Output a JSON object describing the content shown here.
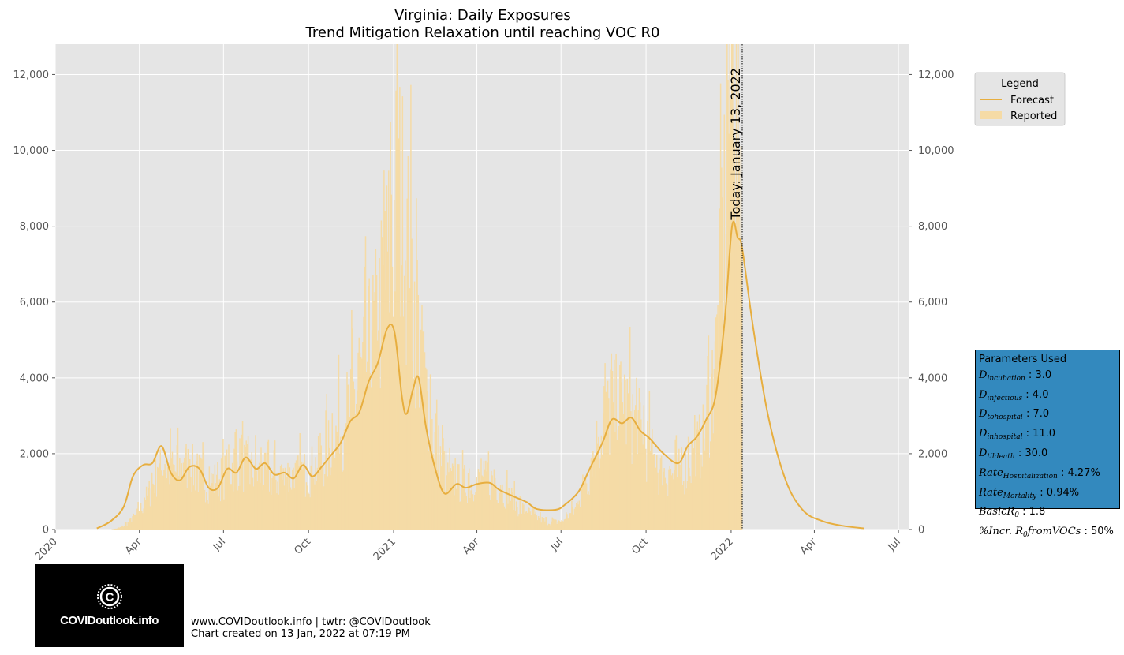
{
  "chart_data": {
    "type": "bar+line",
    "title": "Virginia: Daily Exposures",
    "subtitle": "Trend Mitigation Relaxation until reaching VOC R0",
    "y_ticks": [
      "0",
      "2,000",
      "4,000",
      "6,000",
      "8,000",
      "10,000",
      "12,000"
    ],
    "y_tick_values": [
      0,
      2000,
      4000,
      6000,
      8000,
      10000,
      12000
    ],
    "ylim": [
      0,
      12800
    ],
    "xlim": [
      "2020-01-01",
      "2022-07-12"
    ],
    "x_ticks": [
      {
        "date": "2020-01-01",
        "label": "2020"
      },
      {
        "date": "2020-04-01",
        "label": "Apr"
      },
      {
        "date": "2020-07-01",
        "label": "Jul"
      },
      {
        "date": "2020-10-01",
        "label": "Oct"
      },
      {
        "date": "2021-01-01",
        "label": "2021"
      },
      {
        "date": "2021-04-01",
        "label": "Apr"
      },
      {
        "date": "2021-07-01",
        "label": "Jul"
      },
      {
        "date": "2021-10-01",
        "label": "Oct"
      },
      {
        "date": "2022-01-01",
        "label": "2022"
      },
      {
        "date": "2022-04-01",
        "label": "Apr"
      },
      {
        "date": "2022-07-01",
        "label": "Jul"
      }
    ],
    "today_marker": {
      "date": "2022-01-13",
      "label": "Today: January 13, 2022"
    },
    "legend": {
      "title": "Legend",
      "position": "upper-right-outside",
      "items": [
        "Forecast",
        "Reported"
      ]
    },
    "colors": {
      "forecast": "#e7ae3f",
      "reported": "#f5dba6",
      "plot_bg": "#e5e5e5",
      "grid": "#ffffff",
      "params_bg": "#3389be"
    },
    "grid": true,
    "series": [
      {
        "name": "Reported",
        "kind": "bar",
        "points": [
          [
            "2020-03-01",
            0
          ],
          [
            "2020-03-10",
            40
          ],
          [
            "2020-03-20",
            180
          ],
          [
            "2020-03-31",
            450
          ],
          [
            "2020-04-10",
            900
          ],
          [
            "2020-04-20",
            1500
          ],
          [
            "2020-05-01",
            1600
          ],
          [
            "2020-05-10",
            1500
          ],
          [
            "2020-05-20",
            1700
          ],
          [
            "2020-06-01",
            1500
          ],
          [
            "2020-06-15",
            1200
          ],
          [
            "2020-07-01",
            1400
          ],
          [
            "2020-07-15",
            1800
          ],
          [
            "2020-08-01",
            1500
          ],
          [
            "2020-08-15",
            1400
          ],
          [
            "2020-09-01",
            1300
          ],
          [
            "2020-09-15",
            1400
          ],
          [
            "2020-10-01",
            1500
          ],
          [
            "2020-10-15",
            1800
          ],
          [
            "2020-11-01",
            2500
          ],
          [
            "2020-11-15",
            3200
          ],
          [
            "2020-12-01",
            4300
          ],
          [
            "2020-12-15",
            5500
          ],
          [
            "2020-12-31",
            7800
          ],
          [
            "2021-01-05",
            9000
          ],
          [
            "2021-01-12",
            8000
          ],
          [
            "2021-01-20",
            6500
          ],
          [
            "2021-02-01",
            4000
          ],
          [
            "2021-02-15",
            2200
          ],
          [
            "2021-03-01",
            1300
          ],
          [
            "2021-03-15",
            1200
          ],
          [
            "2021-04-01",
            1250
          ],
          [
            "2021-04-15",
            1300
          ],
          [
            "2021-05-01",
            1000
          ],
          [
            "2021-05-15",
            600
          ],
          [
            "2021-06-01",
            350
          ],
          [
            "2021-06-15",
            200
          ],
          [
            "2021-07-01",
            200
          ],
          [
            "2021-07-15",
            500
          ],
          [
            "2021-08-01",
            1600
          ],
          [
            "2021-08-15",
            2800
          ],
          [
            "2021-09-01",
            3300
          ],
          [
            "2021-09-15",
            3000
          ],
          [
            "2021-10-01",
            2200
          ],
          [
            "2021-10-15",
            1500
          ],
          [
            "2021-11-01",
            1400
          ],
          [
            "2021-11-15",
            1700
          ],
          [
            "2021-12-01",
            2300
          ],
          [
            "2021-12-15",
            4500
          ],
          [
            "2021-12-25",
            8500
          ],
          [
            "2022-01-01",
            12500
          ],
          [
            "2022-01-06",
            11000
          ],
          [
            "2022-01-10",
            9000
          ],
          [
            "2022-01-12",
            7500
          ]
        ]
      },
      {
        "name": "Forecast",
        "kind": "line",
        "points": [
          [
            "2020-02-15",
            30
          ],
          [
            "2020-03-01",
            220
          ],
          [
            "2020-03-15",
            600
          ],
          [
            "2020-03-25",
            1400
          ],
          [
            "2020-04-05",
            1700
          ],
          [
            "2020-04-15",
            1750
          ],
          [
            "2020-04-25",
            2200
          ],
          [
            "2020-05-05",
            1500
          ],
          [
            "2020-05-15",
            1300
          ],
          [
            "2020-05-25",
            1650
          ],
          [
            "2020-06-05",
            1600
          ],
          [
            "2020-06-15",
            1100
          ],
          [
            "2020-06-25",
            1100
          ],
          [
            "2020-07-05",
            1600
          ],
          [
            "2020-07-15",
            1500
          ],
          [
            "2020-07-25",
            1900
          ],
          [
            "2020-08-05",
            1600
          ],
          [
            "2020-08-15",
            1750
          ],
          [
            "2020-08-25",
            1450
          ],
          [
            "2020-09-05",
            1500
          ],
          [
            "2020-09-15",
            1350
          ],
          [
            "2020-09-25",
            1700
          ],
          [
            "2020-10-05",
            1400
          ],
          [
            "2020-10-15",
            1650
          ],
          [
            "2020-10-25",
            1950
          ],
          [
            "2020-11-05",
            2300
          ],
          [
            "2020-11-15",
            2850
          ],
          [
            "2020-11-25",
            3100
          ],
          [
            "2020-12-05",
            3900
          ],
          [
            "2020-12-15",
            4400
          ],
          [
            "2020-12-25",
            5300
          ],
          [
            "2021-01-02",
            5200
          ],
          [
            "2021-01-10",
            3500
          ],
          [
            "2021-01-15",
            3050
          ],
          [
            "2021-01-22",
            3700
          ],
          [
            "2021-01-28",
            4000
          ],
          [
            "2021-02-05",
            2700
          ],
          [
            "2021-02-15",
            1600
          ],
          [
            "2021-02-25",
            950
          ],
          [
            "2021-03-10",
            1200
          ],
          [
            "2021-03-20",
            1100
          ],
          [
            "2021-04-01",
            1200
          ],
          [
            "2021-04-15",
            1230
          ],
          [
            "2021-04-25",
            1050
          ],
          [
            "2021-05-10",
            880
          ],
          [
            "2021-05-25",
            720
          ],
          [
            "2021-06-05",
            540
          ],
          [
            "2021-06-25",
            520
          ],
          [
            "2021-07-05",
            650
          ],
          [
            "2021-07-20",
            1000
          ],
          [
            "2021-08-01",
            1600
          ],
          [
            "2021-08-15",
            2300
          ],
          [
            "2021-08-25",
            2900
          ],
          [
            "2021-09-05",
            2800
          ],
          [
            "2021-09-15",
            2950
          ],
          [
            "2021-09-25",
            2600
          ],
          [
            "2021-10-05",
            2400
          ],
          [
            "2021-10-20",
            2000
          ],
          [
            "2021-11-05",
            1750
          ],
          [
            "2021-11-15",
            2200
          ],
          [
            "2021-11-25",
            2450
          ],
          [
            "2021-12-05",
            2900
          ],
          [
            "2021-12-15",
            3500
          ],
          [
            "2021-12-25",
            5500
          ],
          [
            "2022-01-02",
            8000
          ],
          [
            "2022-01-08",
            7700
          ],
          [
            "2022-01-13",
            7400
          ],
          [
            "2022-01-25",
            5300
          ],
          [
            "2022-02-10",
            3000
          ],
          [
            "2022-03-01",
            1300
          ],
          [
            "2022-03-20",
            500
          ],
          [
            "2022-04-10",
            220
          ],
          [
            "2022-05-01",
            100
          ],
          [
            "2022-05-25",
            30
          ]
        ]
      }
    ]
  },
  "params": {
    "title": "Parameters Used",
    "rows": [
      {
        "var": "D",
        "sub": "incubation",
        "value": "3.0"
      },
      {
        "var": "D",
        "sub": "infectious",
        "value": "4.0"
      },
      {
        "var": "D",
        "sub": "tohospital",
        "value": "7.0"
      },
      {
        "var": "D",
        "sub": "inhospital",
        "value": "11.0"
      },
      {
        "var": "D",
        "sub": "tildeath",
        "value": "30.0"
      },
      {
        "var": "Rate",
        "sub": "Hospitalization",
        "value": "4.27%"
      },
      {
        "var": "Rate",
        "sub": "Mortality",
        "value": "0.94%"
      },
      {
        "var": "BasicR",
        "sub": "0",
        "value": "1.8"
      },
      {
        "var": "%Incr. R",
        "sub": "0",
        "var2": "fromVOCs",
        "value": "50%"
      }
    ]
  },
  "footer": {
    "line1": "www.COVIDoutlook.info | twtr: @COVIDoutlook",
    "line2": "Chart created on 13 Jan, 2022 at 07:19 PM"
  },
  "logo": {
    "text": "COVIDoutlook.info",
    "icon": "covid-c-icon"
  }
}
